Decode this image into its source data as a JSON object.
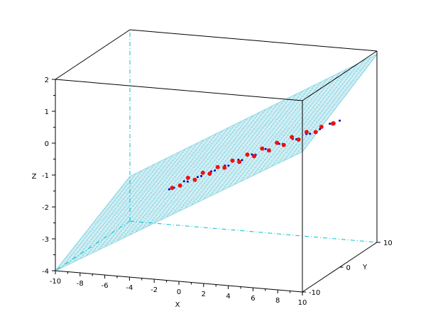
{
  "chart_data": {
    "type": "scatter",
    "title": "",
    "xlabel": "X",
    "ylabel": "Y",
    "zlabel": "Z",
    "xlim": [
      -10,
      10
    ],
    "ylim": [
      -10,
      10
    ],
    "zlim": [
      -4,
      2
    ],
    "x_ticks": [
      "-10",
      "-8",
      "-6",
      "-4",
      "-2",
      "0",
      "2",
      "4",
      "6",
      "8",
      "10"
    ],
    "y_ticks": [
      "-10",
      "0",
      "10"
    ],
    "z_ticks": [
      "-4",
      "-3",
      "-2",
      "-1",
      "0",
      "1",
      "2"
    ],
    "grid": false,
    "colors": {
      "plane_mesh": "#7fd0df",
      "hidden_edge": "#00c0d0",
      "blue_series": "#0000cc",
      "red_series": "#ee1111",
      "box": "#000000"
    },
    "plane": {
      "corners": [
        {
          "x": -10,
          "y": -10,
          "z": -4.0
        },
        {
          "x": 10,
          "y": -10,
          "z": 0.4
        },
        {
          "x": 10,
          "y": 10,
          "z": 1.9
        },
        {
          "x": -10,
          "y": 10,
          "z": -2.6
        }
      ]
    },
    "series": [
      {
        "marker": "dot",
        "color": "#0000cc",
        "points": [
          {
            "x": -3.2,
            "y": 2,
            "z": -1.9
          },
          {
            "x": -2.1,
            "y": 2,
            "z": -1.73
          },
          {
            "x": -1.0,
            "y": 2,
            "z": -1.52
          },
          {
            "x": 0.1,
            "y": 2,
            "z": -1.3
          },
          {
            "x": 1.2,
            "y": 2,
            "z": -1.08
          },
          {
            "x": 2.3,
            "y": 2,
            "z": -0.88
          },
          {
            "x": 3.4,
            "y": 2,
            "z": -0.67
          },
          {
            "x": 4.5,
            "y": 2,
            "z": -0.47
          },
          {
            "x": 5.6,
            "y": 2,
            "z": -0.28
          },
          {
            "x": 6.7,
            "y": 2,
            "z": -0.09
          },
          {
            "x": 7.8,
            "y": 2,
            "z": 0.1
          },
          {
            "x": 8.8,
            "y": 2,
            "z": 0.28
          },
          {
            "x": 9.4,
            "y": 2,
            "z": 0.42
          },
          {
            "x": 9.2,
            "y": 0,
            "z": 0.47
          },
          {
            "x": 8.2,
            "y": -2,
            "z": 0.28
          },
          {
            "x": 7.1,
            "y": -2,
            "z": 0.07
          },
          {
            "x": 6.0,
            "y": -2,
            "z": -0.12
          },
          {
            "x": 4.9,
            "y": -2,
            "z": -0.33
          },
          {
            "x": 3.8,
            "y": -2,
            "z": -0.53
          },
          {
            "x": 2.7,
            "y": -2,
            "z": -0.73
          },
          {
            "x": 1.6,
            "y": -2,
            "z": -0.94
          },
          {
            "x": 0.5,
            "y": -2,
            "z": -1.13
          },
          {
            "x": -0.6,
            "y": -2,
            "z": -1.34
          },
          {
            "x": -1.7,
            "y": -2,
            "z": -1.55
          },
          {
            "x": -2.8,
            "y": -2,
            "z": -1.78
          },
          {
            "x": -3.5,
            "y": -1,
            "z": -1.93
          }
        ]
      },
      {
        "marker": "circle",
        "color": "#ee1111",
        "points": [
          {
            "x": -3.0,
            "y": 2.4,
            "z": -1.82
          },
          {
            "x": -1.8,
            "y": 2.4,
            "z": -1.62
          },
          {
            "x": -0.6,
            "y": 2.4,
            "z": -1.4
          },
          {
            "x": 0.6,
            "y": 2.4,
            "z": -1.16
          },
          {
            "x": 1.8,
            "y": 2.4,
            "z": -0.93
          },
          {
            "x": 3.0,
            "y": 2.4,
            "z": -0.7
          },
          {
            "x": 4.2,
            "y": 2.4,
            "z": -0.48
          },
          {
            "x": 5.4,
            "y": 2.4,
            "z": -0.26
          },
          {
            "x": 6.6,
            "y": 2.4,
            "z": -0.06
          },
          {
            "x": 7.8,
            "y": 2.4,
            "z": 0.14
          },
          {
            "x": 8.9,
            "y": 2.0,
            "z": 0.32
          },
          {
            "x": 9.3,
            "y": 0.5,
            "z": 0.44
          },
          {
            "x": 8.6,
            "y": -1.8,
            "z": 0.33
          },
          {
            "x": 7.4,
            "y": -2.4,
            "z": 0.1
          },
          {
            "x": 6.2,
            "y": -2.4,
            "z": -0.11
          },
          {
            "x": 5.0,
            "y": -2.4,
            "z": -0.32
          },
          {
            "x": 3.8,
            "y": -2.4,
            "z": -0.54
          },
          {
            "x": 2.6,
            "y": -2.4,
            "z": -0.76
          },
          {
            "x": 1.4,
            "y": -2.4,
            "z": -0.98
          },
          {
            "x": 0.2,
            "y": -2.4,
            "z": -1.21
          },
          {
            "x": -1.0,
            "y": -2.4,
            "z": -1.44
          },
          {
            "x": -2.2,
            "y": -2.4,
            "z": -1.66
          },
          {
            "x": -3.2,
            "y": -1.2,
            "z": -1.86
          }
        ]
      }
    ]
  }
}
